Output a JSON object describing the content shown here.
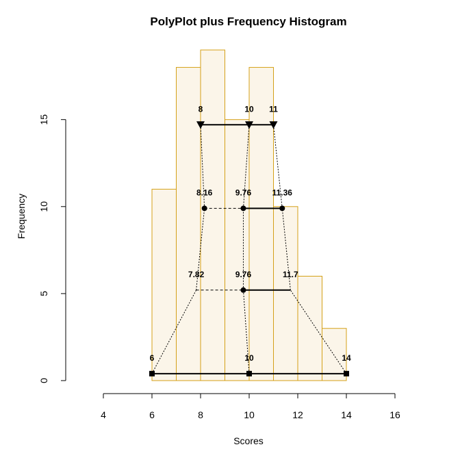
{
  "colors": {
    "bar_fill": "#fbf5e9",
    "bar_stroke": "#d4a017",
    "line": "#000000"
  },
  "chart_data": {
    "type": "bar",
    "title": "PolyPlot plus Frequency Histogram",
    "xlabel": "Scores",
    "ylabel": "Frequency",
    "xlim": [
      4,
      16
    ],
    "ylim": [
      0,
      19
    ],
    "x_ticks": [
      "4",
      "6",
      "8",
      "10",
      "12",
      "14",
      "16"
    ],
    "y_ticks": [
      "0",
      "5",
      "10",
      "15"
    ],
    "grid": false,
    "histogram": {
      "bins": [
        [
          6,
          7
        ],
        [
          7,
          8
        ],
        [
          8,
          9
        ],
        [
          9,
          10
        ],
        [
          10,
          11
        ],
        [
          11,
          12
        ],
        [
          12,
          13
        ],
        [
          13,
          14
        ]
      ],
      "values": [
        11,
        18,
        19,
        15,
        18,
        10,
        6,
        3
      ]
    },
    "polyplot_levels": [
      {
        "y": 0.4,
        "marker": "square",
        "points": [
          {
            "x": 6,
            "label": "6"
          },
          {
            "x": 10,
            "label": "10"
          },
          {
            "x": 14,
            "label": "14"
          }
        ]
      },
      {
        "y": 5.2,
        "marker": "circle",
        "points": [
          {
            "x": 7.82,
            "label": "7.82"
          },
          {
            "x": 9.76,
            "label": "9.76"
          },
          {
            "x": 11.7,
            "label": "11.7"
          }
        ]
      },
      {
        "y": 9.9,
        "marker": "circle",
        "points": [
          {
            "x": 8.16,
            "label": "8.16"
          },
          {
            "x": 9.76,
            "label": "9.76"
          },
          {
            "x": 11.36,
            "label": "11.36"
          }
        ]
      },
      {
        "y": 14.7,
        "marker": "triangle-down",
        "points": [
          {
            "x": 8,
            "label": "8"
          },
          {
            "x": 10,
            "label": "10"
          },
          {
            "x": 11,
            "label": "11"
          }
        ]
      }
    ]
  }
}
